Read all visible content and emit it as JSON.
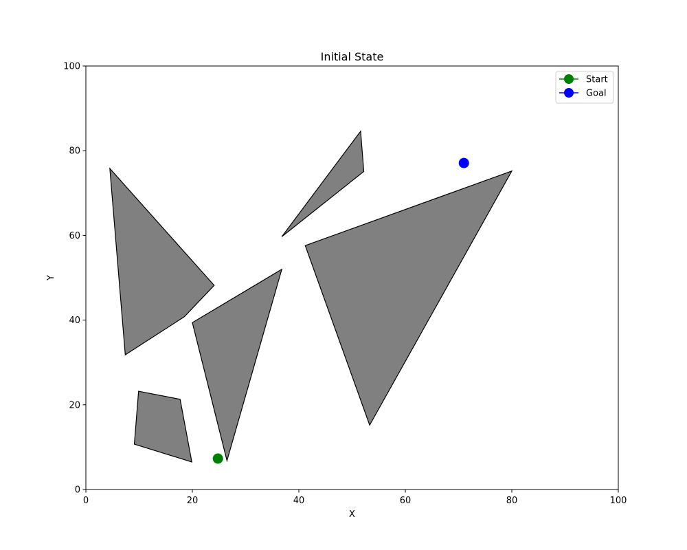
{
  "chart_data": {
    "type": "scatter",
    "title": "Initial State",
    "xlabel": "X",
    "ylabel": "Y",
    "xlim": [
      0,
      100
    ],
    "ylim": [
      0,
      100
    ],
    "x_ticks": [
      0,
      20,
      40,
      60,
      80,
      100
    ],
    "y_ticks": [
      0,
      20,
      40,
      60,
      80,
      100
    ],
    "grid": false,
    "legend_position": "top-right",
    "obstacle_fill": "#808080",
    "obstacle_edge": "#000000",
    "obstacles": [
      [
        [
          4.5,
          75.8
        ],
        [
          24.1,
          48.2
        ],
        [
          18.5,
          40.8
        ],
        [
          7.4,
          31.8
        ]
      ],
      [
        [
          36.8,
          59.7
        ],
        [
          51.6,
          84.6
        ],
        [
          52.2,
          75.1
        ]
      ],
      [
        [
          41.2,
          57.6
        ],
        [
          80.0,
          75.2
        ],
        [
          53.3,
          15.2
        ]
      ],
      [
        [
          20.0,
          39.4
        ],
        [
          36.8,
          52.0
        ],
        [
          26.5,
          6.8
        ]
      ],
      [
        [
          9.9,
          23.2
        ],
        [
          17.7,
          21.3
        ],
        [
          19.9,
          6.5
        ],
        [
          9.1,
          10.7
        ]
      ]
    ],
    "series": [
      {
        "name": "Start",
        "color": "#008000",
        "points": [
          [
            24.8,
            7.3
          ]
        ]
      },
      {
        "name": "Goal",
        "color": "#0000ff",
        "points": [
          [
            71.0,
            77.1
          ]
        ]
      }
    ]
  }
}
